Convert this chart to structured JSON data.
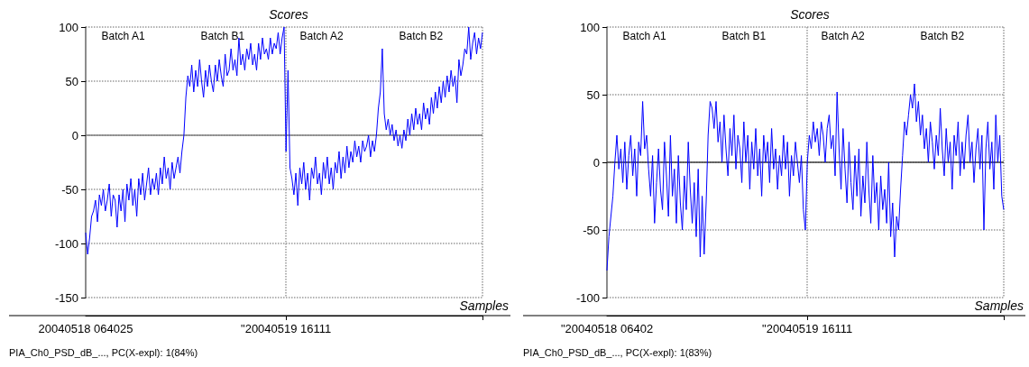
{
  "chart_data": [
    {
      "type": "line",
      "title": "Scores",
      "xlabel": "Samples",
      "ylim": [
        -150,
        100
      ],
      "yticks": [
        -150,
        -100,
        -50,
        0,
        50,
        100
      ],
      "grid": true,
      "ref_lines": [
        {
          "axis": "y",
          "value": 0,
          "color": "#808080"
        }
      ],
      "annotations": [
        "Batch A1",
        "Batch B1",
        "Batch A2",
        "Batch B2",
        "PIA_Ch0_PSD_dB_..., PC(X-expl): 1(84%)"
      ],
      "categories": [
        "20040518 064025",
        null,
        null,
        null,
        null,
        null,
        null,
        null,
        null,
        null,
        null,
        null,
        null,
        null,
        null,
        null,
        null,
        null,
        null,
        null,
        null,
        null,
        null,
        null,
        null,
        null,
        null,
        null,
        null,
        null,
        null,
        null,
        null,
        null,
        null,
        null,
        null,
        null,
        null,
        null,
        null,
        null,
        null,
        null,
        null,
        null,
        null,
        null,
        null,
        null,
        null,
        null,
        null,
        null,
        null,
        null,
        null,
        null,
        null,
        null,
        null,
        null,
        null,
        null,
        null,
        null,
        null,
        null,
        null,
        null,
        null,
        null,
        null,
        null,
        null,
        null,
        null,
        null,
        null,
        null,
        null,
        null,
        null,
        null,
        null,
        null,
        null,
        null,
        null,
        null,
        null,
        null,
        null,
        null,
        null,
        null,
        null,
        null,
        null,
        null,
        null,
        null,
        "\"20040519 16111",
        null,
        null,
        null,
        null,
        null,
        null,
        null,
        null,
        null,
        null,
        null,
        null,
        null,
        null,
        null,
        null,
        null,
        null,
        null,
        null,
        null,
        null,
        null,
        null,
        null,
        null,
        null,
        null,
        null,
        null,
        null,
        null,
        null,
        null,
        null,
        null,
        null,
        null,
        null,
        null,
        null,
        null,
        null,
        null,
        null,
        null,
        null,
        null,
        null,
        null,
        null,
        null,
        null,
        null,
        null,
        null,
        null,
        null,
        null,
        null,
        null,
        null,
        null,
        null,
        null,
        null,
        null,
        null,
        null,
        null,
        null,
        null,
        null,
        null,
        null,
        null,
        null,
        null,
        null,
        null,
        null,
        null,
        null,
        null,
        null,
        null,
        null,
        null,
        null,
        null,
        null,
        null,
        null,
        null,
        null,
        null,
        null,
        null,
        null,
        null
      ],
      "series": [
        {
          "color": "#0000ff",
          "values": [
            -90,
            -110,
            -95,
            -75,
            -70,
            -60,
            -80,
            -55,
            -65,
            -50,
            -70,
            -60,
            -45,
            -75,
            -55,
            -60,
            -85,
            -55,
            -70,
            -50,
            -80,
            -45,
            -60,
            -40,
            -65,
            -50,
            -75,
            -40,
            -55,
            -35,
            -60,
            -45,
            -30,
            -55,
            -40,
            -50,
            -35,
            -55,
            -30,
            -45,
            -20,
            -40,
            -30,
            -50,
            -25,
            -40,
            -30,
            -20,
            -35,
            -15,
            0,
            35,
            55,
            45,
            65,
            40,
            60,
            45,
            70,
            50,
            35,
            60,
            45,
            65,
            50,
            40,
            65,
            50,
            70,
            55,
            45,
            75,
            55,
            60,
            80,
            60,
            70,
            55,
            90,
            65,
            75,
            60,
            80,
            70,
            85,
            65,
            75,
            60,
            85,
            70,
            90,
            75,
            80,
            70,
            90,
            75,
            85,
            80,
            95,
            75,
            90,
            100,
            -15,
            60,
            -30,
            -40,
            -55,
            -35,
            -65,
            -30,
            -45,
            -25,
            -50,
            -35,
            -60,
            -30,
            -40,
            -20,
            -45,
            -35,
            -55,
            -25,
            -40,
            -20,
            -45,
            -30,
            -50,
            -25,
            -35,
            -15,
            -40,
            -20,
            -35,
            -10,
            -30,
            -15,
            -25,
            -5,
            -20,
            -10,
            -25,
            -5,
            -15,
            -10,
            0,
            -20,
            -5,
            -15,
            0,
            25,
            40,
            80,
            20,
            5,
            15,
            0,
            10,
            -5,
            5,
            -10,
            0,
            -12,
            5,
            -5,
            15,
            0,
            20,
            5,
            25,
            10,
            20,
            5,
            30,
            15,
            25,
            10,
            35,
            20,
            40,
            25,
            45,
            30,
            50,
            35,
            55,
            40,
            60,
            45,
            55,
            30,
            70,
            55,
            65,
            80,
            75,
            100,
            70,
            85,
            95,
            75,
            90,
            80,
            95
          ]
        }
      ]
    },
    {
      "type": "line",
      "title": "Scores",
      "xlabel": "Samples",
      "ylim": [
        -100,
        100
      ],
      "yticks": [
        -100,
        -50,
        0,
        50,
        100
      ],
      "grid": true,
      "ref_lines": [
        {
          "axis": "y",
          "value": 0,
          "color": "#404040"
        }
      ],
      "annotations": [
        "Batch A1",
        "Batch B1",
        "Batch A2",
        "Batch B2",
        "PIA_Ch0_PSD_dB_..., PC(X-expl): 1(83%)"
      ],
      "categories": [
        "\"20040518 06402",
        null,
        null,
        null,
        null,
        null,
        null,
        null,
        null,
        null,
        null,
        null,
        null,
        null,
        null,
        null,
        null,
        null,
        null,
        null,
        null,
        null,
        null,
        null,
        null,
        null,
        null,
        null,
        null,
        null,
        null,
        null,
        null,
        null,
        null,
        null,
        null,
        null,
        null,
        null,
        null,
        null,
        null,
        null,
        null,
        null,
        null,
        null,
        null,
        null,
        null,
        null,
        null,
        null,
        null,
        null,
        null,
        null,
        null,
        null,
        null,
        null,
        null,
        null,
        null,
        null,
        null,
        null,
        null,
        null,
        null,
        null,
        null,
        null,
        null,
        null,
        null,
        null,
        null,
        null,
        null,
        null,
        null,
        null,
        null,
        null,
        null,
        null,
        null,
        null,
        null,
        null,
        null,
        null,
        null,
        null,
        null,
        null,
        null,
        null,
        null,
        "\"20040519 16111",
        null,
        null,
        null,
        null,
        null,
        null,
        null,
        null,
        null,
        null,
        null,
        null,
        null,
        null,
        null,
        null,
        null,
        null,
        null,
        null,
        null,
        null,
        null,
        null,
        null,
        null,
        null,
        null,
        null,
        null,
        null,
        null,
        null,
        null,
        null,
        null,
        null,
        null,
        null,
        null,
        null,
        null,
        null,
        null,
        null,
        null,
        null,
        null,
        null,
        null,
        null,
        null,
        null,
        null,
        null,
        null,
        null,
        null,
        null,
        null,
        null,
        null,
        null,
        null,
        null,
        null,
        null,
        null,
        null,
        null,
        null,
        null,
        null,
        null,
        null,
        null,
        null,
        null,
        null,
        null,
        null,
        null,
        null,
        null,
        null,
        null,
        null,
        null,
        null,
        null,
        null,
        null,
        null,
        null,
        null,
        null,
        null,
        null,
        null
      ],
      "series": [
        {
          "color": "#0000ff",
          "values": [
            -80,
            -55,
            -40,
            -25,
            0,
            20,
            -5,
            10,
            -15,
            15,
            -20,
            5,
            20,
            -10,
            10,
            -25,
            15,
            5,
            45,
            10,
            20,
            -5,
            -25,
            5,
            -45,
            -15,
            10,
            -20,
            -35,
            15,
            -10,
            -40,
            20,
            -25,
            -5,
            -45,
            5,
            -30,
            -50,
            -10,
            -35,
            15,
            -20,
            -45,
            -15,
            -55,
            -5,
            -70,
            -25,
            -68,
            -30,
            20,
            45,
            40,
            25,
            45,
            15,
            30,
            0,
            35,
            10,
            -10,
            25,
            5,
            35,
            -5,
            20,
            10,
            -15,
            30,
            0,
            20,
            -20,
            15,
            -5,
            25,
            -10,
            10,
            -25,
            20,
            0,
            15,
            -15,
            25,
            -5,
            10,
            -20,
            5,
            -10,
            20,
            -5,
            15,
            -25,
            5,
            -10,
            15,
            0,
            -15,
            5,
            -35,
            -50,
            0,
            20,
            10,
            30,
            15,
            25,
            5,
            30,
            20,
            0,
            25,
            35,
            10,
            20,
            -10,
            52,
            10,
            -20,
            25,
            -5,
            -30,
            15,
            -15,
            -35,
            5,
            -25,
            10,
            -40,
            -10,
            -30,
            15,
            -20,
            -45,
            5,
            -30,
            -15,
            -50,
            -10,
            -35,
            -20,
            -45,
            0,
            -55,
            -30,
            -70,
            -40,
            -50,
            -20,
            5,
            30,
            20,
            35,
            50,
            40,
            58,
            30,
            45,
            20,
            35,
            10,
            25,
            0,
            30,
            15,
            -5,
            20,
            5,
            40,
            10,
            -10,
            25,
            0,
            15,
            -20,
            20,
            5,
            30,
            -10,
            15,
            -5,
            20,
            35,
            0,
            15,
            -15,
            10,
            25,
            -5,
            20,
            -50,
            10,
            30,
            -5,
            15,
            -20,
            35,
            0,
            20,
            -25,
            -35
          ]
        }
      ]
    }
  ]
}
